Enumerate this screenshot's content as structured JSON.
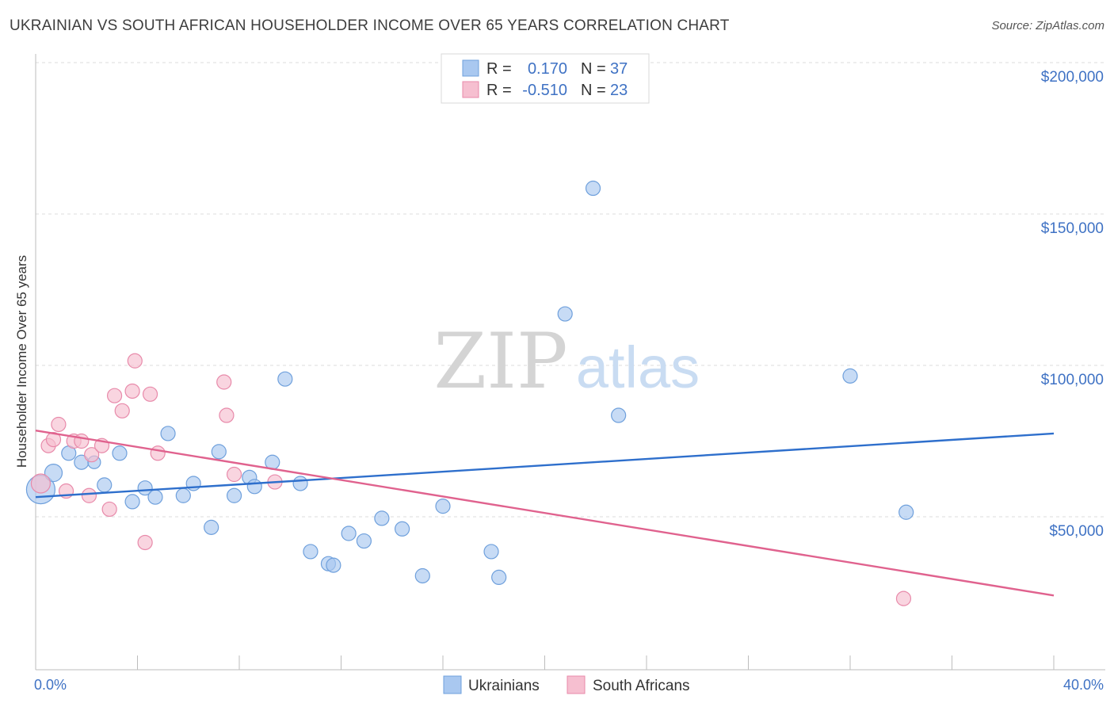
{
  "title": "UKRAINIAN VS SOUTH AFRICAN HOUSEHOLDER INCOME OVER 65 YEARS CORRELATION CHART",
  "source": "Source: ZipAtlas.com",
  "watermark": {
    "zip": "ZIP",
    "atlas": "atlas"
  },
  "legend_top": [
    {
      "r_label": "R =",
      "r_value": "0.170",
      "n_label": "N =",
      "n_value": "37"
    },
    {
      "r_label": "R =",
      "r_value": "-0.510",
      "n_label": "N =",
      "n_value": "23"
    }
  ],
  "chart_data": {
    "type": "scatter",
    "title": "UKRAINIAN VS SOUTH AFRICAN HOUSEHOLDER INCOME OVER 65 YEARS CORRELATION CHART",
    "xlabel": "",
    "ylabel": "Householder Income Over 65 years",
    "xlim": [
      0,
      40
    ],
    "ylim": [
      5000,
      210000
    ],
    "x_tick_labels": [
      "0.0%",
      "40.0%"
    ],
    "y_ticks": [
      50000,
      100000,
      150000,
      200000
    ],
    "y_tick_labels": [
      "$50,000",
      "$100,000",
      "$150,000",
      "$200,000"
    ],
    "grid": true,
    "legend_position": "bottom",
    "series": [
      {
        "name": "Ukrainians",
        "color": "#a9c8f0",
        "stroke": "#6fa0dc",
        "line_color": "#2e6fcc",
        "trend": [
          [
            0,
            56500
          ],
          [
            40,
            77500
          ]
        ],
        "points": [
          [
            0.2,
            59000,
            18
          ],
          [
            0.7,
            64500,
            11
          ],
          [
            1.3,
            71000,
            9
          ],
          [
            1.8,
            68000,
            9
          ],
          [
            2.3,
            68000,
            8
          ],
          [
            2.7,
            60500,
            9
          ],
          [
            3.3,
            71000,
            9
          ],
          [
            3.8,
            55000,
            9
          ],
          [
            4.3,
            59500,
            9
          ],
          [
            4.7,
            56500,
            9
          ],
          [
            5.2,
            77500,
            9
          ],
          [
            5.8,
            57000,
            9
          ],
          [
            6.2,
            61000,
            9
          ],
          [
            6.9,
            46500,
            9
          ],
          [
            7.2,
            71500,
            9
          ],
          [
            7.8,
            57000,
            9
          ],
          [
            8.4,
            63000,
            9
          ],
          [
            8.6,
            60000,
            9
          ],
          [
            9.3,
            68000,
            9
          ],
          [
            9.8,
            95500,
            9
          ],
          [
            10.4,
            61000,
            9
          ],
          [
            10.8,
            38500,
            9
          ],
          [
            11.5,
            34500,
            9
          ],
          [
            11.7,
            34000,
            9
          ],
          [
            12.3,
            44500,
            9
          ],
          [
            12.9,
            42000,
            9
          ],
          [
            13.6,
            49500,
            9
          ],
          [
            14.4,
            46000,
            9
          ],
          [
            15.2,
            30500,
            9
          ],
          [
            16.0,
            53500,
            9
          ],
          [
            17.9,
            38500,
            9
          ],
          [
            18.2,
            30000,
            9
          ],
          [
            20.8,
            117000,
            9
          ],
          [
            21.9,
            158500,
            9
          ],
          [
            22.9,
            83500,
            9
          ],
          [
            32.0,
            96500,
            9
          ],
          [
            34.2,
            51500,
            9
          ]
        ]
      },
      {
        "name": "South Africans",
        "color": "#f6bfd0",
        "stroke": "#e88aaa",
        "line_color": "#e0628e",
        "trend": [
          [
            0,
            78500
          ],
          [
            40,
            24000
          ]
        ],
        "points": [
          [
            0.2,
            61000,
            12
          ],
          [
            0.5,
            73500,
            9
          ],
          [
            0.7,
            75500,
            9
          ],
          [
            0.9,
            80500,
            9
          ],
          [
            1.2,
            58500,
            9
          ],
          [
            1.5,
            75000,
            9
          ],
          [
            1.8,
            75000,
            9
          ],
          [
            2.1,
            57000,
            9
          ],
          [
            2.2,
            70500,
            9
          ],
          [
            2.6,
            73500,
            9
          ],
          [
            2.9,
            52500,
            9
          ],
          [
            3.1,
            90000,
            9
          ],
          [
            3.4,
            85000,
            9
          ],
          [
            3.8,
            91500,
            9
          ],
          [
            3.9,
            101500,
            9
          ],
          [
            4.3,
            41500,
            9
          ],
          [
            4.5,
            90500,
            9
          ],
          [
            4.8,
            71000,
            9
          ],
          [
            7.4,
            94500,
            9
          ],
          [
            7.5,
            83500,
            9
          ],
          [
            7.8,
            64000,
            9
          ],
          [
            9.4,
            61500,
            9
          ],
          [
            34.1,
            23000,
            9
          ]
        ]
      }
    ]
  }
}
